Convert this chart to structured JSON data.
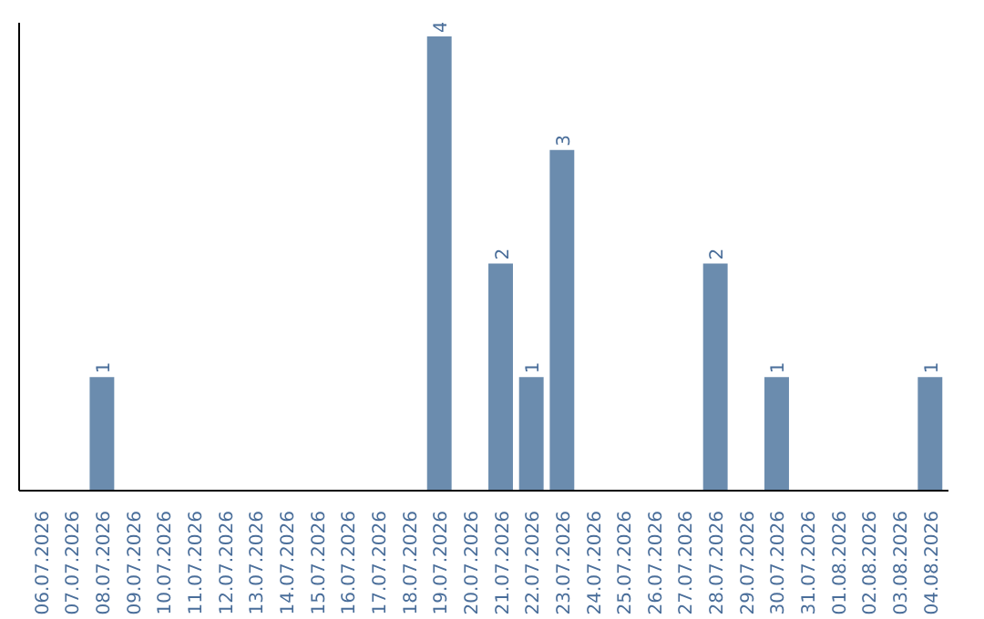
{
  "chart_data": {
    "type": "bar",
    "categories": [
      "06.07.2026",
      "07.07.2026",
      "08.07.2026",
      "09.07.2026",
      "10.07.2026",
      "11.07.2026",
      "12.07.2026",
      "13.07.2026",
      "14.07.2026",
      "15.07.2026",
      "16.07.2026",
      "17.07.2026",
      "18.07.2026",
      "19.07.2026",
      "20.07.2026",
      "21.07.2026",
      "22.07.2026",
      "23.07.2026",
      "24.07.2026",
      "25.07.2026",
      "26.07.2026",
      "27.07.2026",
      "28.07.2026",
      "29.07.2026",
      "30.07.2026",
      "31.07.2026",
      "01.08.2026",
      "02.08.2026",
      "03.08.2026",
      "04.08.2026"
    ],
    "values": [
      0,
      0,
      1,
      0,
      0,
      0,
      0,
      0,
      0,
      0,
      0,
      0,
      0,
      4,
      0,
      2,
      1,
      3,
      0,
      0,
      0,
      0,
      2,
      0,
      1,
      0,
      0,
      0,
      0,
      1
    ],
    "value_labels": [
      null,
      null,
      "1",
      null,
      null,
      null,
      null,
      null,
      null,
      null,
      null,
      null,
      null,
      "4",
      null,
      "2",
      "1",
      "3",
      null,
      null,
      null,
      null,
      "2",
      null,
      "1",
      null,
      null,
      null,
      null,
      "1"
    ],
    "color": "#6b8cae"
  }
}
